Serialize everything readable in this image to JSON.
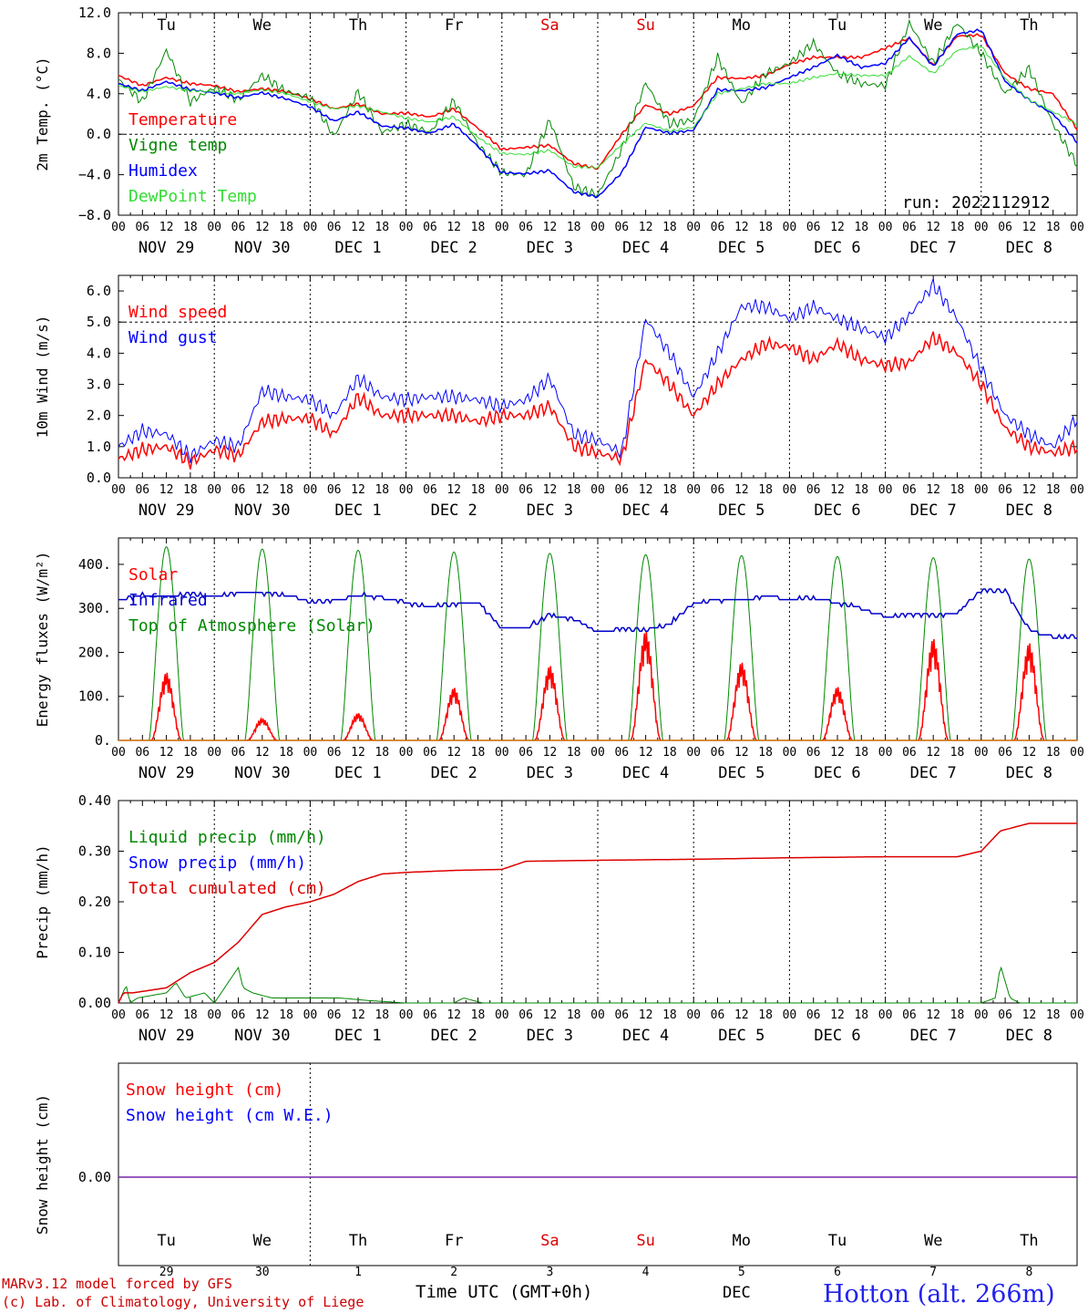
{
  "meta": {
    "run_label": "run: 2022112912",
    "credit_line1": "MARv3.12 model forced by GFS",
    "credit_line2": "(c) Lab. of Climatology, University of Liege",
    "station": "Hotton (alt. 266m)",
    "xaxis_title": "Time UTC (GMT+0h)",
    "month_label": "DEC"
  },
  "hour_ticks": [
    "00",
    "06",
    "12",
    "18"
  ],
  "final_hour": "00",
  "day_labels": [
    "NOV 29",
    "NOV 30",
    "DEC  1",
    "DEC  2",
    "DEC  3",
    "DEC  4",
    "DEC  5",
    "DEC  6",
    "DEC  7",
    "DEC  8"
  ],
  "weekdays": [
    "Tu",
    "We",
    "Th",
    "Fr",
    "Sa",
    "Su",
    "Mo",
    "Tu",
    "We",
    "Th"
  ],
  "weekday_colors": [
    "#000000",
    "#000000",
    "#000000",
    "#000000",
    "#dd0000",
    "#dd0000",
    "#000000",
    "#000000",
    "#000000",
    "#000000"
  ],
  "day_numbers": [
    "29",
    "30",
    "1",
    "2",
    "3",
    "4",
    "5",
    "6",
    "7",
    "8"
  ],
  "chart_data": [
    {
      "type": "line",
      "ylabel": "2m Temp. (°C)",
      "ylim": [
        -8,
        12
      ],
      "yticks": [
        "12.0",
        "8.0",
        "4.0",
        "0.0",
        "−4.0",
        "−8.0"
      ],
      "ytick_values": [
        12,
        8,
        4,
        0,
        -4,
        -8
      ],
      "ref_line": 0,
      "x_unit": "days since 2022-11-29 00 UTC",
      "series": [
        {
          "name": "Temperature",
          "color": "#ff0000",
          "x": [
            0,
            0.25,
            0.5,
            0.75,
            1,
            1.25,
            1.5,
            1.75,
            2,
            2.25,
            2.5,
            2.75,
            3,
            3.25,
            3.5,
            3.75,
            4,
            4.25,
            4.5,
            4.75,
            5,
            5.25,
            5.5,
            5.75,
            6,
            6.25,
            6.5,
            6.75,
            7,
            7.25,
            7.5,
            7.75,
            8,
            8.25,
            8.5,
            8.75,
            9,
            9.25,
            9.5,
            9.75,
            10
          ],
          "y": [
            5.8,
            4.8,
            5.6,
            5.0,
            4.8,
            4.2,
            4.5,
            4.2,
            3.5,
            2.5,
            3.0,
            2.0,
            2.1,
            1.7,
            2.5,
            0.6,
            -1.5,
            -1.3,
            -1.1,
            -2.9,
            -3.4,
            0.0,
            2.9,
            2.0,
            2.8,
            5.6,
            5.5,
            5.8,
            6.9,
            7.6,
            7.6,
            7.6,
            8.5,
            9.5,
            6.8,
            9.7,
            9.8,
            6.0,
            4.5,
            4.0,
            0.5
          ]
        },
        {
          "name": "Vigne temp",
          "color": "#008800",
          "x": [
            0,
            0.25,
            0.5,
            0.75,
            1,
            1.25,
            1.5,
            1.75,
            2,
            2.25,
            2.5,
            2.75,
            3,
            3.25,
            3.5,
            3.75,
            4,
            4.25,
            4.5,
            4.75,
            5,
            5.25,
            5.5,
            5.75,
            6,
            6.25,
            6.5,
            6.75,
            7,
            7.25,
            7.5,
            7.75,
            8,
            8.25,
            8.5,
            8.75,
            9,
            9.25,
            9.5,
            9.75,
            10
          ],
          "y": [
            5.4,
            3.2,
            8.3,
            3.2,
            4.6,
            3.4,
            5.8,
            4.2,
            3.6,
            -0.2,
            4.2,
            0.2,
            1.0,
            0.2,
            3.3,
            -1.0,
            -3.8,
            -4.0,
            1.4,
            -5.2,
            -6.0,
            -1.5,
            5.1,
            1.0,
            1.4,
            7.6,
            3.0,
            6.0,
            7.0,
            9.0,
            6.0,
            5.0,
            4.8,
            11.0,
            7.0,
            11.0,
            8.0,
            4.0,
            6.5,
            1.0,
            -3.0
          ]
        },
        {
          "name": "Humidex",
          "color": "#0000ff",
          "x": [
            0,
            0.25,
            0.5,
            0.75,
            1,
            1.25,
            1.5,
            1.75,
            2,
            2.25,
            2.5,
            2.75,
            3,
            3.25,
            3.5,
            3.75,
            4,
            4.25,
            4.5,
            4.75,
            5,
            5.25,
            5.5,
            5.75,
            6,
            6.25,
            6.5,
            6.75,
            7,
            7.25,
            7.5,
            7.75,
            8,
            8.25,
            8.5,
            8.75,
            9,
            9.25,
            9.5,
            9.75,
            10
          ],
          "y": [
            5.0,
            4.3,
            5.2,
            4.4,
            4.1,
            3.6,
            4.1,
            3.5,
            2.7,
            1.3,
            2.2,
            0.8,
            0.6,
            0.1,
            1.0,
            -1.2,
            -3.8,
            -3.9,
            -3.6,
            -5.7,
            -6.2,
            -3.8,
            0.7,
            0.1,
            0.4,
            4.4,
            4.3,
            4.6,
            5.6,
            6.6,
            7.8,
            6.6,
            7.0,
            9.5,
            6.7,
            9.9,
            10.3,
            5.2,
            3.4,
            2.0,
            -0.8
          ]
        },
        {
          "name": "DewPoint Temp",
          "color": "#33dd33",
          "x": [
            0,
            0.25,
            0.5,
            0.75,
            1,
            1.25,
            1.5,
            1.75,
            2,
            2.25,
            2.5,
            2.75,
            3,
            3.25,
            3.5,
            3.75,
            4,
            4.25,
            4.5,
            4.75,
            5,
            5.25,
            5.5,
            5.75,
            6,
            6.25,
            6.5,
            6.75,
            7,
            7.25,
            7.5,
            7.75,
            8,
            8.25,
            8.5,
            8.75,
            9,
            9.25,
            9.5,
            9.75,
            10
          ],
          "y": [
            4.8,
            4.2,
            4.7,
            4.3,
            4.2,
            4.0,
            4.4,
            4.0,
            3.2,
            2.5,
            2.8,
            2.2,
            1.6,
            1.2,
            1.7,
            -0.3,
            -1.9,
            -2.0,
            -1.6,
            -3.2,
            -3.3,
            -1.0,
            1.1,
            0.3,
            0.7,
            4.0,
            4.5,
            5.0,
            5.0,
            5.6,
            6.0,
            5.8,
            5.8,
            7.7,
            6.0,
            8.3,
            8.7,
            5.5,
            3.4,
            2.2,
            1.0
          ]
        }
      ]
    },
    {
      "type": "line",
      "ylabel": "10m Wind (m/s)",
      "ylim": [
        0,
        6.5
      ],
      "yticks": [
        "6.0",
        "5.0",
        "4.0",
        "3.0",
        "2.0",
        "1.0",
        "0.0"
      ],
      "ytick_values": [
        6,
        5,
        4,
        3,
        2,
        1,
        0
      ],
      "ref_line": 5,
      "x_unit": "days since 2022-11-29 00 UTC",
      "series": [
        {
          "name": "Wind speed",
          "color": "#ff0000",
          "x": [
            0,
            0.25,
            0.5,
            0.75,
            1,
            1.25,
            1.5,
            1.75,
            2,
            2.25,
            2.5,
            2.75,
            3,
            3.25,
            3.5,
            3.75,
            4,
            4.25,
            4.5,
            4.75,
            5,
            5.25,
            5.5,
            5.75,
            6,
            6.25,
            6.5,
            6.75,
            7,
            7.25,
            7.5,
            7.75,
            8,
            8.25,
            8.5,
            8.75,
            9,
            9.25,
            9.5,
            9.75,
            10
          ],
          "y": [
            0.6,
            0.9,
            1.0,
            0.5,
            0.9,
            0.7,
            1.8,
            1.9,
            1.9,
            1.4,
            2.6,
            2.0,
            2.0,
            2.0,
            2.0,
            1.8,
            2.0,
            2.0,
            2.3,
            1.0,
            0.8,
            0.6,
            3.8,
            3.0,
            2.0,
            3.0,
            3.8,
            4.3,
            4.2,
            3.8,
            4.3,
            3.8,
            3.6,
            3.7,
            4.5,
            4.0,
            3.0,
            1.6,
            1.0,
            0.8,
            1.0
          ]
        },
        {
          "name": "Wind gust",
          "color": "#0000ff",
          "x": [
            0,
            0.25,
            0.5,
            0.75,
            1,
            1.25,
            1.5,
            1.75,
            2,
            2.25,
            2.5,
            2.75,
            3,
            3.25,
            3.5,
            3.75,
            4,
            4.25,
            4.5,
            4.75,
            5,
            5.25,
            5.5,
            5.75,
            6,
            6.25,
            6.5,
            6.75,
            7,
            7.25,
            7.5,
            7.75,
            8,
            8.25,
            8.5,
            8.75,
            9,
            9.25,
            9.5,
            9.75,
            10
          ],
          "y": [
            1.0,
            1.5,
            1.4,
            0.7,
            1.2,
            1.0,
            2.8,
            2.6,
            2.5,
            2.0,
            3.2,
            2.6,
            2.5,
            2.6,
            2.6,
            2.5,
            2.3,
            2.5,
            3.2,
            1.4,
            1.2,
            0.8,
            5.1,
            4.0,
            2.6,
            4.0,
            5.5,
            5.5,
            5.1,
            5.5,
            5.1,
            4.8,
            4.5,
            5.2,
            6.2,
            5.1,
            3.5,
            2.0,
            1.4,
            1.0,
            1.9
          ]
        }
      ]
    },
    {
      "type": "line",
      "ylabel": "Energy fluxes (W/m²)",
      "ylim": [
        0,
        460
      ],
      "yticks": [
        "400.",
        "300.",
        "200.",
        "100.",
        "0."
      ],
      "ytick_values": [
        400,
        300,
        200,
        100,
        0
      ],
      "x_unit": "days since 2022-11-29 00 UTC",
      "solar_day_peaks": [
        155,
        50,
        62,
        120,
        170,
        250,
        178,
        122,
        232,
        222
      ],
      "toa_day_peaks": [
        440,
        435,
        432,
        428,
        425,
        422,
        420,
        418,
        415,
        412
      ],
      "series": [
        {
          "name": "Solar",
          "color": "#ff0000"
        },
        {
          "name": "Infrared",
          "color": "#0000cc",
          "x": [
            0,
            0.25,
            0.5,
            0.75,
            1,
            1.25,
            1.5,
            1.75,
            2,
            2.25,
            2.5,
            2.75,
            3,
            3.25,
            3.5,
            3.75,
            4,
            4.25,
            4.5,
            4.75,
            5,
            5.25,
            5.5,
            5.75,
            6,
            6.25,
            6.5,
            6.75,
            7,
            7.25,
            7.5,
            7.75,
            8,
            8.25,
            8.5,
            8.75,
            9,
            9.25,
            9.5,
            9.75,
            10
          ],
          "y": [
            320,
            330,
            325,
            335,
            328,
            335,
            335,
            330,
            315,
            318,
            330,
            325,
            312,
            305,
            310,
            315,
            255,
            255,
            285,
            275,
            245,
            255,
            250,
            265,
            310,
            320,
            318,
            330,
            320,
            325,
            312,
            300,
            280,
            285,
            285,
            290,
            340,
            340,
            250,
            235,
            235
          ]
        },
        {
          "name": "Top of Atmosphere (Solar)",
          "color": "#008800"
        }
      ]
    },
    {
      "type": "line",
      "ylabel": "Precip (mm/h)",
      "ylim": [
        0,
        0.4
      ],
      "yticks": [
        "0.40",
        "0.30",
        "0.20",
        "0.10",
        "0.00"
      ],
      "ytick_values": [
        0.4,
        0.3,
        0.2,
        0.1,
        0
      ],
      "x_unit": "days since 2022-11-29 00 UTC",
      "series": [
        {
          "name": "Liquid precip (mm/h)",
          "color": "#008800",
          "x": [
            0,
            0.08,
            0.12,
            0.2,
            0.5,
            0.6,
            0.7,
            0.9,
            1.0,
            1.25,
            1.3,
            1.4,
            1.6,
            2.0,
            2.3,
            2.6,
            3.0,
            3.5,
            3.6,
            3.8,
            4.0,
            9.0,
            9.15,
            9.2,
            9.3,
            9.4,
            10
          ],
          "y": [
            0,
            0.035,
            0,
            0.01,
            0.02,
            0.04,
            0.01,
            0.02,
            0,
            0.07,
            0.03,
            0.02,
            0.01,
            0.01,
            0.01,
            0.005,
            0,
            0,
            0.01,
            0,
            0,
            0,
            0.01,
            0.075,
            0.01,
            0,
            0
          ]
        },
        {
          "name": "Snow precip (mm/h)",
          "color": "#0000ff",
          "x": [
            0,
            10
          ],
          "y": [
            0,
            0
          ]
        },
        {
          "name": "Total cumulated (cm)",
          "color": "#dd0000",
          "x": [
            0,
            0.05,
            0.15,
            0.5,
            0.75,
            1,
            1.25,
            1.5,
            1.75,
            2,
            2.25,
            2.5,
            2.75,
            3,
            3.25,
            3.5,
            4,
            4.25,
            5,
            6,
            7,
            8,
            8.75,
            9,
            9.2,
            9.5,
            10
          ],
          "y": [
            0,
            0.02,
            0.02,
            0.03,
            0.06,
            0.08,
            0.12,
            0.175,
            0.19,
            0.2,
            0.215,
            0.24,
            0.255,
            0.258,
            0.26,
            0.262,
            0.264,
            0.28,
            0.282,
            0.284,
            0.287,
            0.289,
            0.289,
            0.3,
            0.34,
            0.355,
            0.355
          ]
        }
      ]
    },
    {
      "type": "line",
      "ylabel": "Snow height (cm)",
      "yticks": [
        "0.00"
      ],
      "ytick_values": [
        0
      ],
      "x_unit": "days since 2022-11-29 00 UTC",
      "series": [
        {
          "name": "Snow height (cm)",
          "color": "#ff0000",
          "x": [
            0,
            10
          ],
          "y": [
            0,
            0
          ]
        },
        {
          "name": "Snow height (cm W.E.)",
          "color": "#0000ff",
          "x": [
            0,
            10
          ],
          "y": [
            0,
            0
          ]
        }
      ]
    }
  ]
}
